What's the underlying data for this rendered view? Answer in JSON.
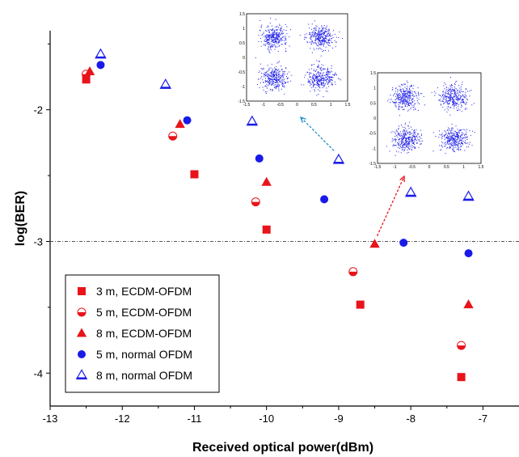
{
  "chart_data": {
    "type": "scatter",
    "title": "",
    "xlabel": "Received optical power(dBm)",
    "ylabel": "log(BER)",
    "xlim": [
      -13,
      -6.5
    ],
    "ylim": [
      -4.25,
      -1.4
    ],
    "x_ticks": [
      -13,
      -12,
      -11,
      -10,
      -9,
      -8,
      -7
    ],
    "y_ticks": [
      -4,
      -3,
      -2
    ],
    "threshold_y": -3,
    "legend_position": "bottom-left",
    "series": [
      {
        "name": "3 m, ECDM-OFDM",
        "marker": "square",
        "color": "#e8141a",
        "points": [
          [
            -12.5,
            -1.77
          ],
          [
            -11.0,
            -2.49
          ],
          [
            -10.0,
            -2.91
          ],
          [
            -8.7,
            -3.48
          ],
          [
            -7.3,
            -4.03
          ]
        ]
      },
      {
        "name": "5 m, ECDM-OFDM",
        "marker": "half-circle",
        "color": "#e8141a",
        "points": [
          [
            -12.5,
            -1.73
          ],
          [
            -11.3,
            -2.2
          ],
          [
            -10.15,
            -2.7
          ],
          [
            -8.8,
            -3.23
          ],
          [
            -7.3,
            -3.79
          ]
        ]
      },
      {
        "name": "8 m, ECDM-OFDM",
        "marker": "triangle",
        "color": "#e8141a",
        "points": [
          [
            -12.45,
            -1.71
          ],
          [
            -11.2,
            -2.11
          ],
          [
            -10.0,
            -2.55
          ],
          [
            -8.5,
            -3.02
          ],
          [
            -7.2,
            -3.48
          ]
        ]
      },
      {
        "name": "5 m, normal OFDM",
        "marker": "circle",
        "color": "#1a1ae8",
        "points": [
          [
            -12.3,
            -1.66
          ],
          [
            -11.1,
            -2.08
          ],
          [
            -10.1,
            -2.37
          ],
          [
            -9.2,
            -2.68
          ],
          [
            -8.1,
            -3.01
          ],
          [
            -7.2,
            -3.09
          ]
        ]
      },
      {
        "name": "8 m, normal OFDM",
        "marker": "open-triangle",
        "color": "#1a1ae8",
        "points": [
          [
            -12.3,
            -1.58
          ],
          [
            -11.4,
            -1.81
          ],
          [
            -10.2,
            -2.09
          ],
          [
            -9.0,
            -2.38
          ],
          [
            -8.0,
            -2.63
          ],
          [
            -7.2,
            -2.66
          ]
        ]
      }
    ],
    "insets": [
      {
        "x_ticks": [
          "-1.5",
          "-1",
          "-0.5",
          "0",
          "0.5",
          "1",
          "1.5"
        ],
        "y_ticks": [
          "1.5",
          "1",
          "0.5",
          "0",
          "-0.5",
          "-1",
          "-1.5"
        ]
      },
      {
        "x_ticks": [
          "-1.5",
          "-1",
          "-0.5",
          "0",
          "0.5",
          "1",
          "1.5"
        ],
        "y_ticks": [
          "1.5",
          "1",
          "0.5",
          "0",
          "-0.5",
          "-1",
          "-1.5"
        ]
      }
    ]
  }
}
